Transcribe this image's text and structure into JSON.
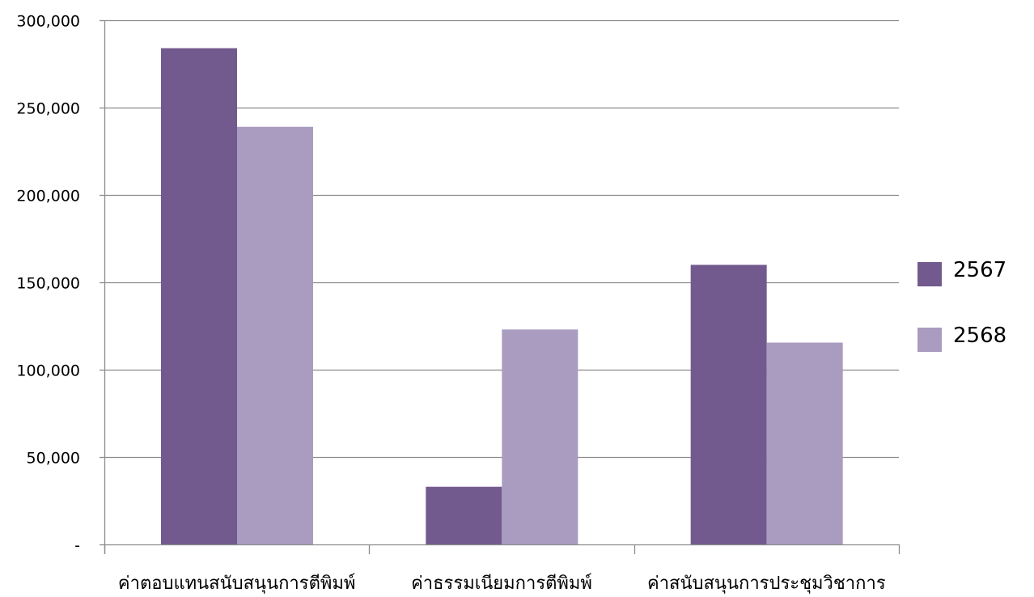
{
  "chart_data": {
    "type": "bar",
    "categories": [
      "ค่าตอบแทนสนับสนุนการตีพิมพ์",
      "ค่าธรรมเนียมการตีพิมพ์",
      "ค่าสนับสนุนการประชุมวิชาการ"
    ],
    "series": [
      {
        "name": "2567",
        "values": [
          284000,
          33000,
          160000
        ],
        "color": "#735a8e"
      },
      {
        "name": "2568",
        "values": [
          239000,
          123000,
          115500
        ],
        "color": "#aa9bc0"
      }
    ],
    "yticks": [
      {
        "value": 0,
        "label": "-"
      },
      {
        "value": 50000,
        "label": "50,000"
      },
      {
        "value": 100000,
        "label": "100,000"
      },
      {
        "value": 150000,
        "label": "150,000"
      },
      {
        "value": 200000,
        "label": "200,000"
      },
      {
        "value": 250000,
        "label": "250,000"
      },
      {
        "value": 300000,
        "label": "300,000"
      }
    ],
    "ylim": [
      0,
      300000
    ],
    "grid": true,
    "legend_position": "right",
    "title": "",
    "xlabel": "",
    "ylabel": "",
    "colors": {
      "grid": "#8c8c8c",
      "axis": "#8c8c8c",
      "text": "#000000"
    }
  }
}
